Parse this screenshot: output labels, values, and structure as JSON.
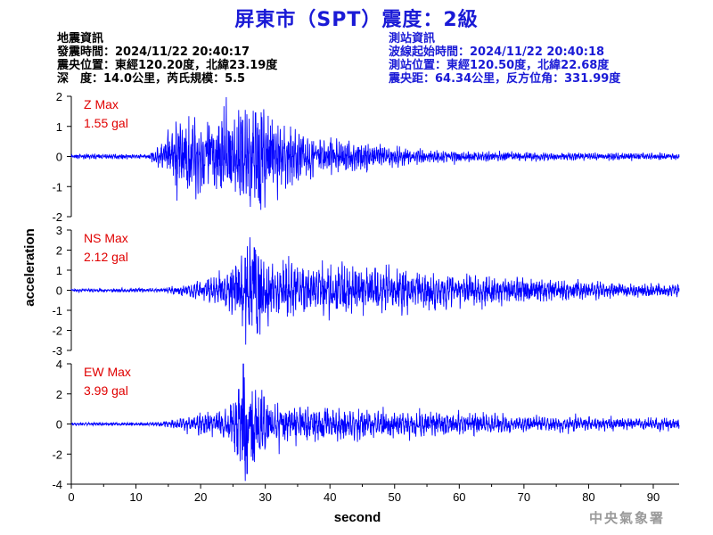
{
  "title": "屏東市（SPT）震度：2級",
  "earthquake_info": {
    "heading": "地震資訊",
    "origin_time": "發震時間：2024/11/22 20:40:17",
    "epicenter": "震央位置：東經120.20度，北緯23.19度",
    "depth_magnitude": "深　度：14.0公里，芮氏規模：5.5"
  },
  "station_info": {
    "heading": "測站資訊",
    "wave_start": "波線起始時間：2024/11/22 20:40:18",
    "station_location": "測站位置：東經120.50度，北緯22.68度",
    "distance_azimuth": "震央距：64.34公里，反方位角：331.99度"
  },
  "credit": "中央氣象署",
  "colors": {
    "title": "#1a1ad6",
    "trace": "#0000ff",
    "max_label": "#e00000",
    "axis": "#000000",
    "credit": "#9a9a9a"
  },
  "chart_data": {
    "type": "line",
    "xlabel": "second",
    "ylabel": "acceleration",
    "xlim": [
      0,
      94
    ],
    "xticks": [
      0,
      10,
      20,
      30,
      40,
      50,
      60,
      70,
      80,
      90
    ],
    "grid": false,
    "panels": [
      {
        "channel": "Z",
        "max_label": "Z Max",
        "max_value": "1.55 gal",
        "ylim": [
          -2,
          2
        ],
        "yticks": [
          -2,
          -1,
          0,
          1,
          2
        ],
        "envelope": [
          [
            0,
            0.05
          ],
          [
            12,
            0.05
          ],
          [
            14,
            0.3
          ],
          [
            15,
            0.6
          ],
          [
            17,
            0.9
          ],
          [
            20,
            0.75
          ],
          [
            22,
            0.85
          ],
          [
            25,
            1.0
          ],
          [
            27,
            0.95
          ],
          [
            28.5,
            1.4
          ],
          [
            30,
            1.05
          ],
          [
            33,
            0.7
          ],
          [
            38,
            0.45
          ],
          [
            45,
            0.3
          ],
          [
            55,
            0.15
          ],
          [
            70,
            0.1
          ],
          [
            94,
            0.07
          ]
        ],
        "peaks": [
          [
            28.5,
            1.45
          ],
          [
            29.2,
            -1.55
          ],
          [
            26.5,
            1.2
          ],
          [
            27.6,
            -1.3
          ],
          [
            22.8,
            1.0
          ],
          [
            20.5,
            -0.9
          ]
        ]
      },
      {
        "channel": "NS",
        "max_label": "NS Max",
        "max_value": "2.12 gal",
        "ylim": [
          -3,
          3
        ],
        "yticks": [
          -3,
          -2,
          -1,
          0,
          1,
          2,
          3
        ],
        "envelope": [
          [
            0,
            0.05
          ],
          [
            14,
            0.07
          ],
          [
            16,
            0.15
          ],
          [
            20,
            0.3
          ],
          [
            24,
            0.6
          ],
          [
            26,
            1.1
          ],
          [
            27,
            1.7
          ],
          [
            28.5,
            1.6
          ],
          [
            30,
            1.0
          ],
          [
            34,
            0.9
          ],
          [
            40,
            0.8
          ],
          [
            48,
            0.75
          ],
          [
            55,
            0.6
          ],
          [
            65,
            0.5
          ],
          [
            75,
            0.35
          ],
          [
            85,
            0.25
          ],
          [
            94,
            0.2
          ]
        ],
        "peaks": [
          [
            28.3,
            2.12
          ],
          [
            28.8,
            -2.1
          ],
          [
            26.9,
            1.6
          ],
          [
            27.5,
            -1.7
          ],
          [
            47,
            1.1
          ],
          [
            41,
            -0.9
          ]
        ]
      },
      {
        "channel": "EW",
        "max_label": "EW Max",
        "max_value": "3.99 gal",
        "ylim": [
          -4,
          4
        ],
        "yticks": [
          -4,
          -2,
          0,
          2,
          4
        ],
        "envelope": [
          [
            0,
            0.06
          ],
          [
            14,
            0.1
          ],
          [
            17,
            0.3
          ],
          [
            20,
            0.45
          ],
          [
            23,
            0.55
          ],
          [
            25,
            1.0
          ],
          [
            26.5,
            2.8
          ],
          [
            27.5,
            2.2
          ],
          [
            29,
            1.4
          ],
          [
            32,
            1.0
          ],
          [
            36,
            0.8
          ],
          [
            42,
            0.75
          ],
          [
            50,
            0.6
          ],
          [
            60,
            0.5
          ],
          [
            70,
            0.35
          ],
          [
            85,
            0.3
          ],
          [
            94,
            0.25
          ]
        ],
        "peaks": [
          [
            26.6,
            3.99
          ],
          [
            27.2,
            -3.3
          ],
          [
            25.9,
            2.3
          ],
          [
            28.1,
            -2.4
          ],
          [
            29.8,
            1.8
          ]
        ]
      }
    ]
  }
}
